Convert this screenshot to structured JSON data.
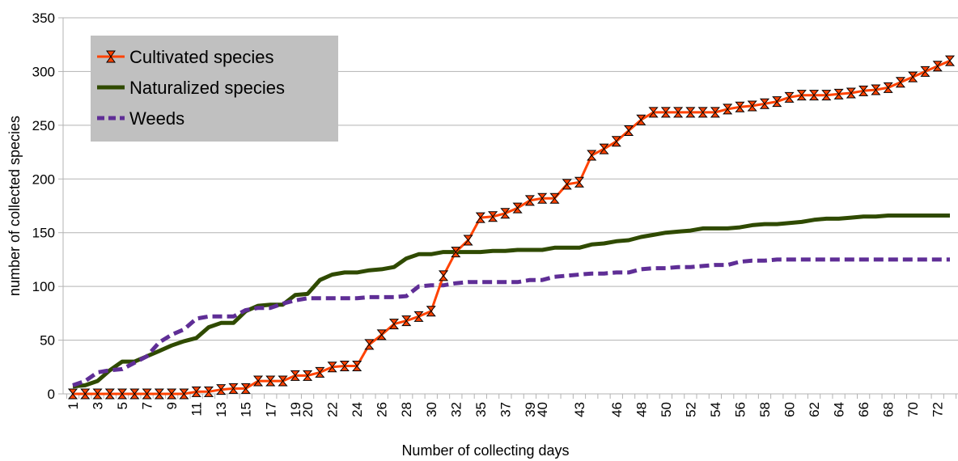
{
  "chart_data": {
    "type": "line",
    "xlabel": "Number of collecting days",
    "ylabel": "number of collected species",
    "ylim": [
      0,
      350
    ],
    "yticks": [
      0,
      50,
      100,
      150,
      200,
      250,
      300,
      350
    ],
    "grid": "horizontal",
    "legend": "top-left",
    "categories": [
      "1",
      "2",
      "3",
      "4",
      "5",
      "6",
      "7",
      "8",
      "9",
      "10",
      "11",
      "12",
      "13",
      "14",
      "15",
      "16",
      "17",
      "18",
      "19",
      "20",
      "21",
      "22",
      "23",
      "24",
      "25",
      "26",
      "27",
      "28",
      "29",
      "30",
      "31",
      "32",
      "33",
      "35",
      "36",
      "37",
      "38",
      "39",
      "40",
      "41",
      "42",
      "43",
      "44",
      "45",
      "46",
      "47",
      "48",
      "49",
      "50",
      "51",
      "52",
      "53",
      "54",
      "55",
      "56",
      "57",
      "58",
      "59",
      "60",
      "61",
      "62",
      "63",
      "64",
      "65",
      "66",
      "67",
      "68",
      "69",
      "70",
      "71",
      "72",
      "73"
    ],
    "tick_labels": [
      "1",
      "3",
      "5",
      "7",
      "9",
      "11",
      "13",
      "15",
      "17",
      "19",
      "20",
      "22",
      "24",
      "26",
      "28",
      "30",
      "32",
      "35",
      "37",
      "39",
      "40",
      "43",
      "46",
      "48",
      "50",
      "52",
      "54",
      "56",
      "58",
      "60",
      "62",
      "64",
      "66",
      "68",
      "70",
      "72"
    ],
    "series": [
      {
        "name": "Cultivated species",
        "color": "#ff4200",
        "marker": "hourglass",
        "values": [
          0,
          0,
          0,
          0,
          0,
          0,
          0,
          0,
          0,
          0,
          2,
          2,
          4,
          5,
          5,
          12,
          12,
          12,
          17,
          17,
          20,
          25,
          26,
          26,
          46,
          55,
          65,
          68,
          72,
          77,
          110,
          132,
          143,
          164,
          165,
          168,
          173,
          180,
          182,
          182,
          195,
          197,
          222,
          228,
          235,
          245,
          255,
          262,
          262,
          262,
          262,
          262,
          262,
          265,
          267,
          268,
          270,
          272,
          276,
          278,
          278,
          278,
          279,
          280,
          282,
          283,
          285,
          290,
          295,
          300,
          305,
          310
        ]
      },
      {
        "name": "Naturalized species",
        "color": "#2f4a00",
        "values": [
          7,
          8,
          12,
          22,
          30,
          30,
          35,
          40,
          45,
          49,
          52,
          62,
          66,
          66,
          77,
          82,
          83,
          83,
          92,
          93,
          106,
          111,
          113,
          113,
          115,
          116,
          118,
          126,
          130,
          130,
          132,
          132,
          132,
          132,
          133,
          133,
          134,
          134,
          134,
          136,
          136,
          136,
          139,
          140,
          142,
          143,
          146,
          148,
          150,
          151,
          152,
          154,
          154,
          154,
          155,
          157,
          158,
          158,
          159,
          160,
          162,
          163,
          163,
          164,
          165,
          165,
          166,
          166,
          166,
          166,
          166,
          166
        ]
      },
      {
        "name": "Weeds",
        "color": "#5f2e96",
        "values": [
          8,
          12,
          20,
          22,
          23,
          29,
          35,
          48,
          55,
          60,
          70,
          72,
          72,
          72,
          78,
          80,
          80,
          84,
          87,
          89,
          89,
          89,
          89,
          89,
          90,
          90,
          90,
          91,
          100,
          101,
          101,
          103,
          104,
          104,
          104,
          104,
          104,
          106,
          106,
          109,
          110,
          111,
          112,
          112,
          113,
          113,
          116,
          117,
          117,
          118,
          118,
          119,
          120,
          120,
          123,
          124,
          124,
          125,
          125,
          125,
          125,
          125,
          125,
          125,
          125,
          125,
          125,
          125,
          125,
          125,
          125,
          125
        ]
      }
    ]
  }
}
